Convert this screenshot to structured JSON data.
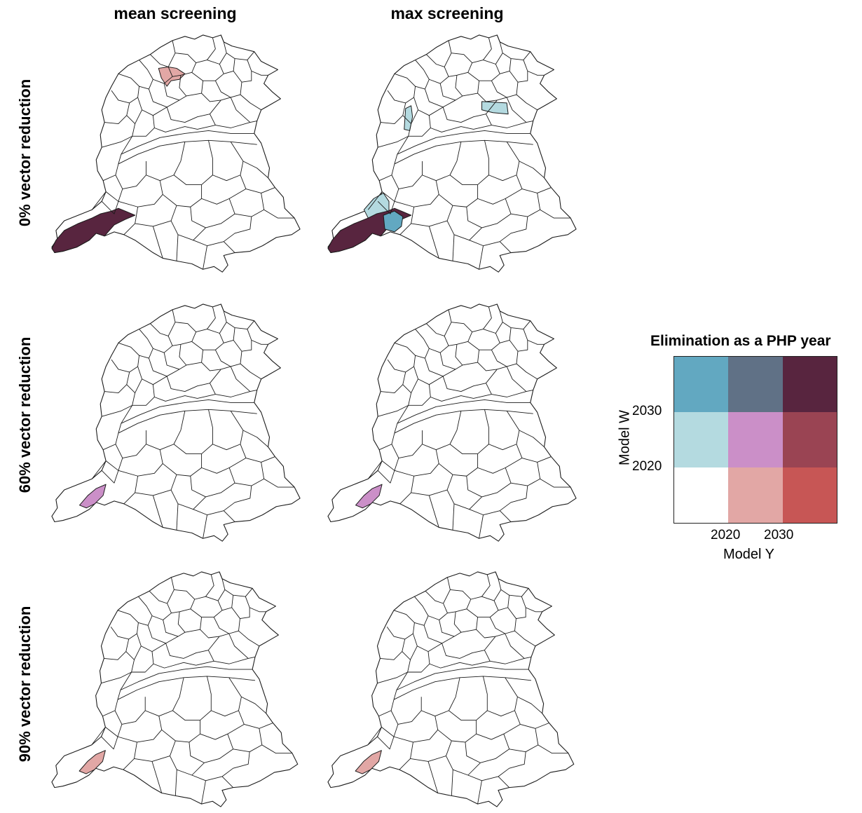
{
  "columns": [
    "mean screening",
    "max screening"
  ],
  "rows": [
    {
      "label": "0% vector reduction",
      "panels": [
        {
          "highlights": [
            {
              "district": "north-center",
              "color": "#e2a7a5"
            },
            {
              "district": "sw-tip",
              "color": "#58253f"
            }
          ]
        },
        {
          "highlights": [
            {
              "district": "north-east",
              "color": "#b4dae0"
            },
            {
              "district": "north-west-small",
              "color": "#b4dae0"
            },
            {
              "district": "sw-upper",
              "color": "#b4dae0"
            },
            {
              "district": "sw-tip",
              "color": "#58253f"
            },
            {
              "district": "sw-mid",
              "color": "#62a8c1"
            }
          ]
        }
      ]
    },
    {
      "label": "60% vector reduction",
      "panels": [
        {
          "highlights": [
            {
              "district": "sw-small",
              "color": "#cb8fc8"
            }
          ]
        },
        {
          "highlights": [
            {
              "district": "sw-small",
              "color": "#cb8fc8"
            }
          ]
        }
      ]
    },
    {
      "label": "90% vector reduction",
      "panels": [
        {
          "highlights": [
            {
              "district": "sw-small",
              "color": "#e2a7a5"
            }
          ]
        },
        {
          "highlights": [
            {
              "district": "sw-small",
              "color": "#e2a7a5"
            }
          ]
        }
      ]
    }
  ],
  "legend": {
    "title": "Elimination as a PHP year",
    "x_label": "Model Y",
    "y_label": "Model W",
    "x_ticks": [
      "2020",
      "2030"
    ],
    "y_ticks": [
      "2030",
      "2020"
    ],
    "cells": [
      [
        "#62a8c1",
        "#607186",
        "#58253f"
      ],
      [
        "#b4dae0",
        "#cb8fc8",
        "#9a4453"
      ],
      [
        "#ffffff",
        "#e2a7a5",
        "#c75655"
      ]
    ]
  }
}
